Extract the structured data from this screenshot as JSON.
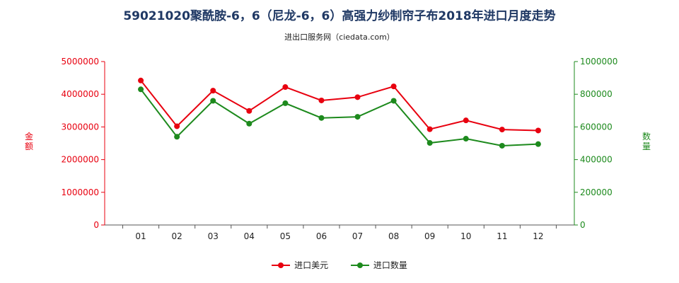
{
  "title": "59021020聚酰胺-6，6（尼龙-6，6）高强力纱制帘子布2018年进口月度走势",
  "subtitle": "进出口服务网（ciedata.com）",
  "colors": {
    "amount": "#e8000f",
    "quantity": "#1d8a1d",
    "title": "#1f3864"
  },
  "chart_data": {
    "type": "line",
    "categories": [
      "01",
      "02",
      "03",
      "04",
      "05",
      "06",
      "07",
      "08",
      "09",
      "10",
      "11",
      "12"
    ],
    "y_left": {
      "label": "金额",
      "lim": [
        0,
        5000000
      ],
      "ticks": [
        "0",
        "1000000",
        "2000000",
        "3000000",
        "4000000",
        "5000000"
      ]
    },
    "y_right": {
      "label": "数量",
      "lim": [
        0,
        1000000
      ],
      "ticks": [
        "0",
        "200000",
        "400000",
        "600000",
        "800000",
        "1000000"
      ]
    },
    "series": [
      {
        "name": "进口美元",
        "axis": "left",
        "values": [
          4420000,
          3020000,
          4110000,
          3490000,
          4220000,
          3810000,
          3910000,
          4240000,
          2930000,
          3200000,
          2920000,
          2890000
        ]
      },
      {
        "name": "进口数量",
        "axis": "right",
        "values": [
          830000,
          540000,
          760000,
          620000,
          745000,
          655000,
          662000,
          760000,
          502000,
          528000,
          485000,
          495000
        ]
      }
    ],
    "grid": false,
    "legend_position": "bottom"
  }
}
